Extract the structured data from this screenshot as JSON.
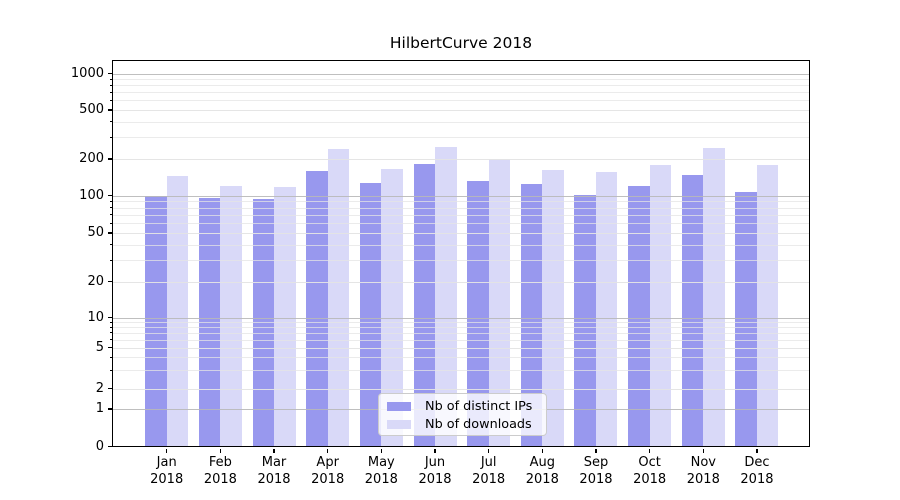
{
  "title": "HilbertCurve 2018",
  "chart_data": {
    "type": "bar",
    "title": "HilbertCurve 2018",
    "categories": [
      "Jan",
      "Feb",
      "Mar",
      "Apr",
      "May",
      "Jun",
      "Jul",
      "Aug",
      "Sep",
      "Oct",
      "Nov",
      "Dec"
    ],
    "x_year": "2018",
    "series": [
      {
        "name": "Nb of distinct IPs",
        "color": "#9898ee",
        "values": [
          100,
          96,
          94,
          158,
          126,
          182,
          133,
          124,
          102,
          120,
          148,
          108
        ]
      },
      {
        "name": "Nb of downloads",
        "color": "#d9d9f8",
        "values": [
          145,
          121,
          118,
          240,
          165,
          250,
          200,
          162,
          155,
          180,
          245,
          180
        ]
      }
    ],
    "yscale": "symlog",
    "ylim": [
      0,
      1300
    ],
    "y_labeled_ticks": [
      0,
      1,
      2,
      5,
      10,
      20,
      50,
      100,
      200,
      500,
      1000
    ],
    "y_major_ticks": [
      1,
      10,
      100,
      1000
    ],
    "y_minor_ticks": [
      3,
      4,
      6,
      7,
      8,
      9,
      30,
      40,
      60,
      70,
      80,
      90,
      300,
      400,
      600,
      700,
      800,
      900
    ],
    "grid": true,
    "legend_position": "lower center",
    "colors": {
      "major_grid": "#b8b8b8",
      "minor_grid": "#e4e4e4",
      "axis": "#000000",
      "text": "#000000"
    }
  }
}
